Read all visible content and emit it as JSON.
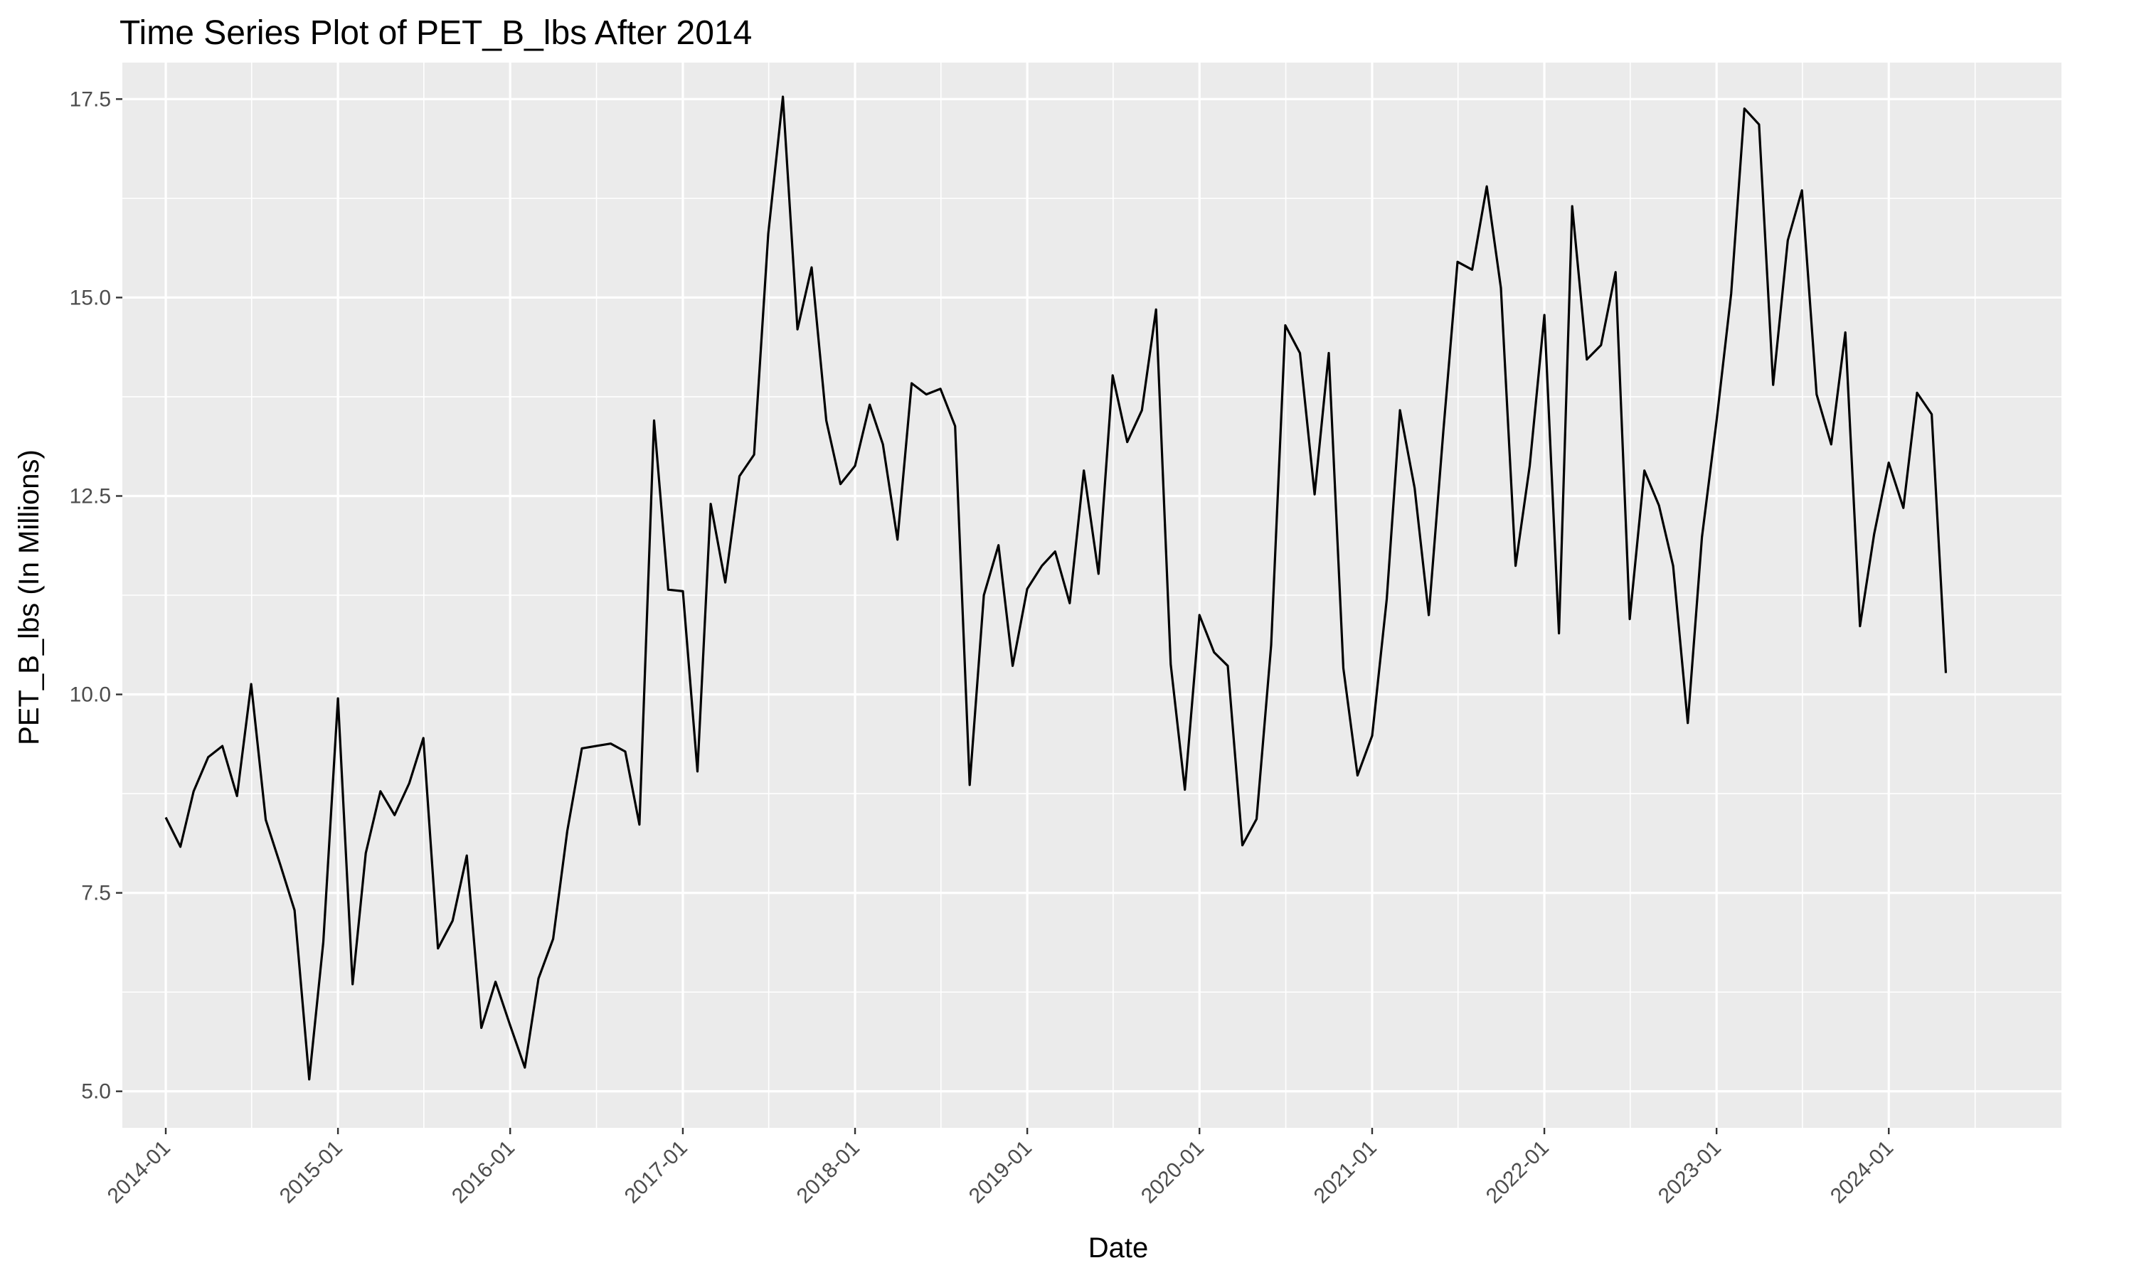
{
  "chart_data": {
    "type": "line",
    "title": "Time Series Plot of PET_B_lbs After 2014",
    "xlabel": "Date",
    "ylabel": "PET_B_lbs (In Millions)",
    "x_tick_labels": [
      "2014-01",
      "2015-01",
      "2016-01",
      "2017-01",
      "2018-01",
      "2019-01",
      "2020-01",
      "2021-01",
      "2022-01",
      "2023-01",
      "2024-01"
    ],
    "y_ticks": [
      5.0,
      7.5,
      10.0,
      12.5,
      15.0,
      17.5
    ],
    "y_tick_labels": [
      "5.0",
      "7.5",
      "10.0",
      "12.5",
      "15.0",
      "17.5"
    ],
    "xlim": [
      "2013-10-01",
      "2025-01-01"
    ],
    "ylim": [
      4.54,
      17.96
    ],
    "grid": true,
    "legend": "none",
    "colors": {
      "panel": "#ebebeb",
      "grid": "#ffffff",
      "line": "#000000",
      "tick_text": "#4d4d4d"
    },
    "series": [
      {
        "x": [
          "2014-01",
          "2014-02",
          "2014-03",
          "2014-04",
          "2014-05",
          "2014-06",
          "2014-07",
          "2014-08",
          "2014-09",
          "2014-10",
          "2014-11",
          "2014-12",
          "2015-01",
          "2015-02",
          "2015-03",
          "2015-04",
          "2015-05",
          "2015-06",
          "2015-07",
          "2015-08",
          "2015-09",
          "2015-10",
          "2015-11",
          "2015-12",
          "2016-01",
          "2016-02",
          "2016-03",
          "2016-04",
          "2016-05",
          "2016-06",
          "2016-07",
          "2016-08",
          "2016-09",
          "2016-10",
          "2016-11",
          "2016-12",
          "2017-01",
          "2017-02",
          "2017-03",
          "2017-04",
          "2017-05",
          "2017-06",
          "2017-07",
          "2017-08",
          "2017-09",
          "2017-10",
          "2017-11",
          "2017-12",
          "2018-01",
          "2018-02",
          "2018-03",
          "2018-04",
          "2018-05",
          "2018-06",
          "2018-07",
          "2018-08",
          "2018-09",
          "2018-10",
          "2018-11",
          "2018-12",
          "2019-01",
          "2019-02",
          "2019-03",
          "2019-04",
          "2019-05",
          "2019-06",
          "2019-07",
          "2019-08",
          "2019-09",
          "2019-10",
          "2019-11",
          "2019-12",
          "2020-01",
          "2020-02",
          "2020-03",
          "2020-04",
          "2020-05",
          "2020-06",
          "2020-07",
          "2020-08",
          "2020-09",
          "2020-10",
          "2020-11",
          "2020-12",
          "2021-01",
          "2021-02",
          "2021-03",
          "2021-04",
          "2021-05",
          "2021-06",
          "2021-07",
          "2021-08",
          "2021-09",
          "2021-10",
          "2021-11",
          "2021-12",
          "2022-01",
          "2022-02",
          "2022-03",
          "2022-04",
          "2022-05",
          "2022-06",
          "2022-07",
          "2022-08",
          "2022-09",
          "2022-10",
          "2022-11",
          "2022-12",
          "2023-01",
          "2023-02",
          "2023-03",
          "2023-04",
          "2023-05",
          "2023-06",
          "2023-07",
          "2023-08",
          "2023-09",
          "2023-10",
          "2023-11",
          "2023-12",
          "2024-01",
          "2024-02",
          "2024-03",
          "2024-04",
          "2024-05"
        ],
        "values": [
          8.45,
          8.08,
          8.78,
          9.21,
          9.35,
          8.72,
          10.13,
          8.42,
          7.85,
          7.28,
          5.15,
          6.88,
          9.95,
          6.35,
          8.0,
          8.78,
          8.48,
          8.88,
          9.45,
          6.8,
          7.15,
          7.97,
          5.8,
          6.38,
          5.83,
          5.3,
          6.42,
          6.92,
          8.28,
          9.32,
          9.35,
          9.38,
          9.28,
          8.36,
          13.45,
          11.32,
          11.3,
          9.03,
          12.4,
          11.41,
          12.75,
          13.02,
          15.8,
          17.53,
          14.6,
          15.38,
          13.45,
          12.65,
          12.88,
          13.65,
          13.15,
          11.95,
          13.92,
          13.78,
          13.85,
          13.38,
          8.86,
          11.25,
          11.88,
          10.36,
          11.33,
          11.62,
          11.8,
          11.15,
          12.82,
          11.52,
          14.02,
          13.18,
          13.58,
          14.85,
          10.38,
          8.8,
          11.0,
          10.53,
          10.36,
          8.1,
          8.43,
          10.62,
          14.65,
          14.3,
          12.52,
          14.3,
          10.33,
          8.98,
          9.48,
          11.2,
          13.58,
          12.6,
          11.0,
          13.32,
          15.45,
          15.35,
          16.4,
          15.12,
          11.62,
          12.88,
          14.78,
          10.77,
          16.15,
          14.22,
          14.4,
          15.32,
          10.95,
          12.82,
          12.38,
          11.62,
          9.64,
          11.98,
          13.45,
          15.05,
          17.38,
          17.18,
          13.9,
          15.72,
          16.35,
          13.78,
          13.15,
          14.56,
          10.86,
          12.02,
          12.92,
          12.35,
          13.8,
          13.53,
          10.27
        ]
      }
    ]
  }
}
